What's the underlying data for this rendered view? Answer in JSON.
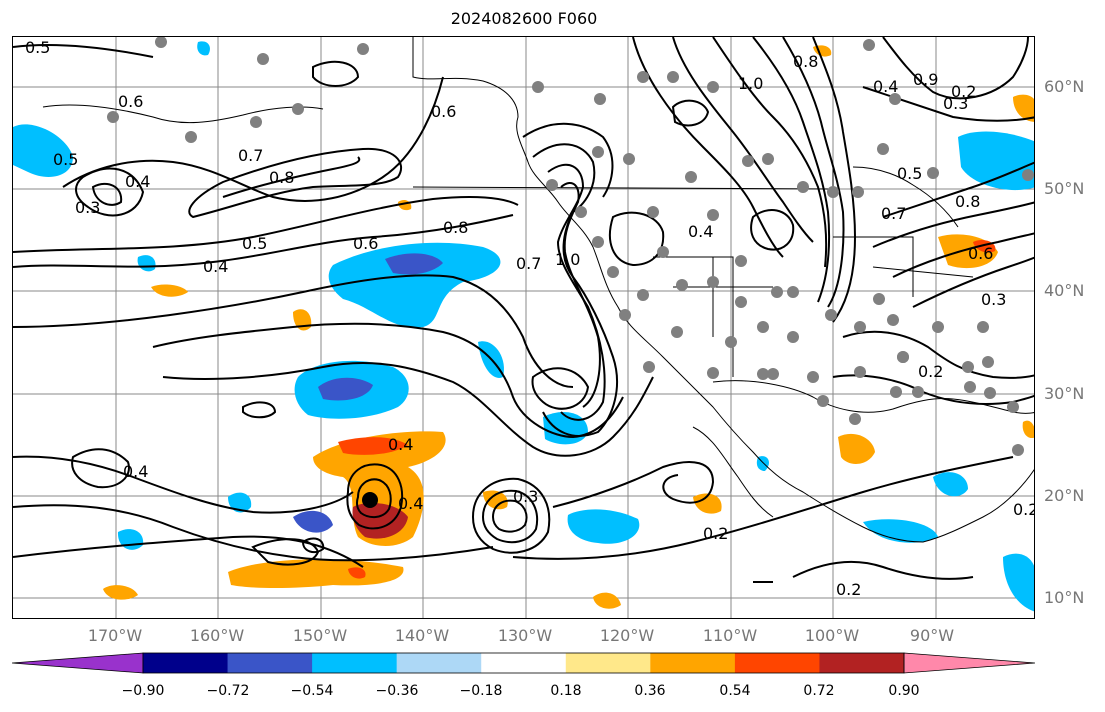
{
  "title": "2024082600 F060",
  "lat_labels": [
    "60°N",
    "50°N",
    "40°N",
    "30°N",
    "20°N",
    "10°N"
  ],
  "lon_labels": [
    "170°W",
    "160°W",
    "150°W",
    "140°W",
    "130°W",
    "120°W",
    "110°W",
    "100°W",
    "90°W"
  ],
  "colorbar": {
    "ticks": [
      "−0.90",
      "−0.72",
      "−0.54",
      "−0.36",
      "−0.18",
      "0.18",
      "0.36",
      "0.54",
      "0.72",
      "0.90"
    ],
    "colors": [
      "#9932cc",
      "#00008b",
      "#3a55c8",
      "#00bfff",
      "#add8f6",
      "#ffffff",
      "#ffe88a",
      "#ffa500",
      "#ff4500",
      "#b22222",
      "#ff88aa"
    ]
  },
  "contour_labels": [
    "0.5",
    "0.6",
    "0.4",
    "0.3",
    "0.7",
    "0.8",
    "0.5",
    "0.4",
    "0.6",
    "0.8",
    "0.7",
    "1.0",
    "0.5",
    "0.6",
    "0.8",
    "1.0",
    "0.4",
    "0.9",
    "0.4",
    "0.2",
    "0.3",
    "0.5",
    "0.7",
    "0.8",
    "0.6",
    "0.2",
    "0.4",
    "0.4",
    "0.2",
    "0.2",
    "0.2",
    "0.3",
    "0.4",
    "0.3"
  ],
  "colors": {
    "contour": "#000000",
    "grid": "#888888",
    "coast": "#000000",
    "station": "#808080",
    "storm_center": "#000000"
  }
}
